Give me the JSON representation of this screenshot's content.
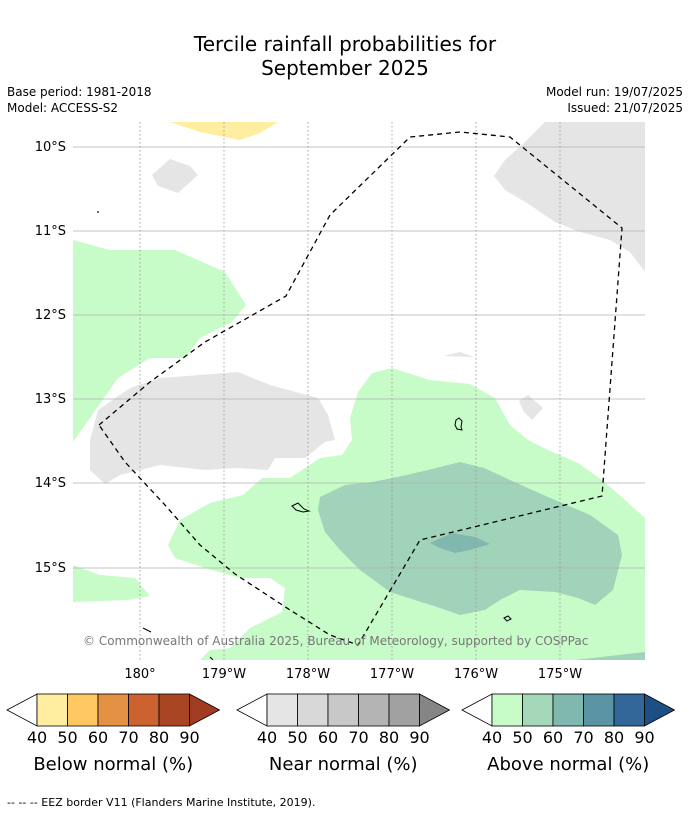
{
  "header": {
    "title_line1": "Tercile rainfall probabilities for",
    "title_line2": "September 2025",
    "base_period": "Base period: 1981-2018",
    "model": "Model: ACCESS-S2",
    "model_run": "Model run: 19/07/2025",
    "issued": "Issued: 21/07/2025"
  },
  "map": {
    "lat_labels": [
      "10°S",
      "11°S",
      "12°S",
      "13°S",
      "14°S",
      "15°S"
    ],
    "lon_labels": [
      "180°",
      "179°W",
      "178°W",
      "177°W",
      "176°W",
      "175°W"
    ],
    "copyright": "© Commonwealth of Australia 2025, Bureau of Meteorology, supported by COSPPac"
  },
  "legends": [
    {
      "title": "Below normal (%)",
      "ticks": [
        "40",
        "50",
        "60",
        "70",
        "80",
        "90"
      ],
      "colors": [
        "#ffeda0",
        "#fec762",
        "#e39143",
        "#cb6230",
        "#aa4524",
        "#a13b22"
      ]
    },
    {
      "title": "Near normal (%)",
      "ticks": [
        "40",
        "50",
        "60",
        "70",
        "80",
        "90"
      ],
      "colors": [
        "#e5e5e5",
        "#d8d8d8",
        "#c8c8c8",
        "#b4b4b4",
        "#a1a1a1",
        "#858585"
      ]
    },
    {
      "title": "Above normal (%)",
      "ticks": [
        "40",
        "50",
        "60",
        "70",
        "80",
        "90"
      ],
      "colors": [
        "#c7fcc8",
        "#a4d8b8",
        "#80b8b0",
        "#5b94a3",
        "#336699",
        "#1d4f87"
      ]
    }
  ],
  "footnote": "--  --  -- EEZ border V11 (Flanders Marine Institute, 2019)."
}
